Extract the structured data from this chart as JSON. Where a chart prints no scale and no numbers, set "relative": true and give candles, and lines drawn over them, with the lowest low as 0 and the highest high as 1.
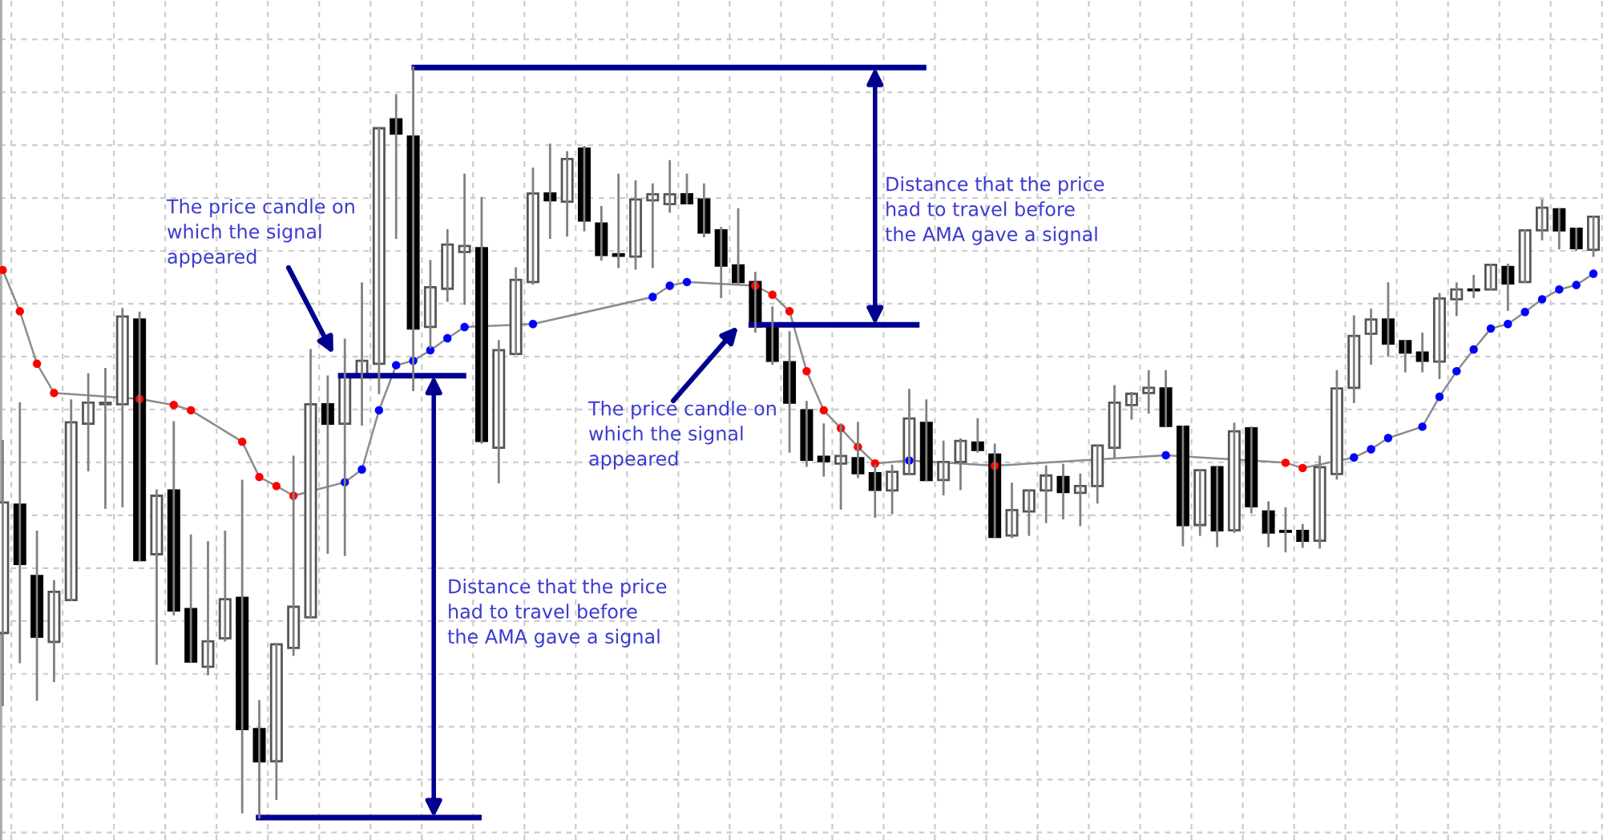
{
  "chart_data": {
    "type": "candlestick",
    "relative": true,
    "grid": true,
    "categories": [
      null,
      null,
      null,
      null,
      null,
      null,
      null,
      null,
      null,
      null,
      null,
      null,
      null,
      null,
      null,
      null,
      null,
      null,
      null,
      null,
      null,
      null,
      null,
      null,
      null,
      null,
      null,
      null,
      null,
      null,
      null,
      null,
      null,
      null,
      null,
      null,
      null,
      null,
      null,
      null,
      null,
      null,
      null,
      null,
      null,
      null,
      null,
      null,
      null,
      null,
      null,
      null,
      null,
      null,
      null,
      null,
      null,
      null,
      null,
      null,
      null,
      null,
      null,
      null,
      null,
      null,
      null,
      null,
      null,
      null,
      null,
      null,
      null,
      null,
      null,
      null,
      null,
      null,
      null,
      null,
      null,
      null,
      null,
      null,
      null,
      null,
      null,
      null,
      null,
      null,
      null,
      null,
      null,
      null
    ],
    "ohlc": [
      [
        0.246,
        0.502,
        0.15,
        0.42
      ],
      [
        0.417,
        0.552,
        0.207,
        0.338
      ],
      [
        0.322,
        0.381,
        0.157,
        0.241
      ],
      [
        0.234,
        0.315,
        0.182,
        0.301
      ],
      [
        0.29,
        0.556,
        0.29,
        0.527
      ],
      [
        0.525,
        0.591,
        0.463,
        0.553
      ],
      [
        0.551,
        0.598,
        0.413,
        0.553
      ],
      [
        0.551,
        0.678,
        0.415,
        0.668
      ],
      [
        0.664,
        0.673,
        0.343,
        0.343
      ],
      [
        0.351,
        0.436,
        0.205,
        0.429
      ],
      [
        0.436,
        0.527,
        0.271,
        0.276
      ],
      [
        0.278,
        0.376,
        0.208,
        0.208
      ],
      [
        0.201,
        0.367,
        0.191,
        0.235
      ],
      [
        0.239,
        0.381,
        0.236,
        0.291
      ],
      [
        0.293,
        0.449,
        0.007,
        0.118
      ],
      [
        0.118,
        0.155,
        0.0,
        0.075
      ],
      [
        0.075,
        0.231,
        0.025,
        0.231
      ],
      [
        0.226,
        0.481,
        0.217,
        0.281
      ],
      [
        0.267,
        0.623,
        0.267,
        0.551
      ],
      [
        0.551,
        0.588,
        0.353,
        0.525
      ],
      [
        0.525,
        0.637,
        0.35,
        0.588
      ],
      [
        0.588,
        0.712,
        0.524,
        0.609
      ],
      [
        0.605,
        0.919,
        0.566,
        0.919
      ],
      [
        0.931,
        0.963,
        0.773,
        0.912
      ],
      [
        0.908,
        1.0,
        0.57,
        0.652
      ],
      [
        0.654,
        0.742,
        0.627,
        0.707
      ],
      [
        0.705,
        0.783,
        0.689,
        0.764
      ],
      [
        0.754,
        0.857,
        0.685,
        0.762
      ],
      [
        0.759,
        0.826,
        0.5,
        0.502
      ],
      [
        0.493,
        0.635,
        0.447,
        0.623
      ],
      [
        0.618,
        0.732,
        0.618,
        0.717
      ],
      [
        0.714,
        0.865,
        0.712,
        0.832
      ],
      [
        0.832,
        0.897,
        0.773,
        0.823
      ],
      [
        0.821,
        0.887,
        0.776,
        0.878
      ],
      [
        0.892,
        0.894,
        0.783,
        0.796
      ],
      [
        0.792,
        0.814,
        0.744,
        0.75
      ],
      [
        0.751,
        0.857,
        0.734,
        0.749
      ],
      [
        0.748,
        0.848,
        0.732,
        0.824
      ],
      [
        0.823,
        0.844,
        0.734,
        0.831
      ],
      [
        0.818,
        0.875,
        0.808,
        0.831
      ],
      [
        0.831,
        0.857,
        0.819,
        0.819
      ],
      [
        0.824,
        0.844,
        0.775,
        0.78
      ],
      [
        0.783,
        0.786,
        0.694,
        0.736
      ],
      [
        0.736,
        0.811,
        0.712,
        0.714
      ],
      [
        0.714,
        0.726,
        0.648,
        0.655
      ],
      [
        0.655,
        0.68,
        0.605,
        0.609
      ],
      [
        0.607,
        0.647,
        0.488,
        0.553
      ],
      [
        0.543,
        0.554,
        0.469,
        0.477
      ],
      [
        0.481,
        0.524,
        0.456,
        0.475
      ],
      [
        0.472,
        0.524,
        0.412,
        0.482
      ],
      [
        0.479,
        0.526,
        0.454,
        0.459
      ],
      [
        0.459,
        0.469,
        0.401,
        0.437
      ],
      [
        0.436,
        0.469,
        0.406,
        0.461
      ],
      [
        0.458,
        0.57,
        0.458,
        0.532
      ],
      [
        0.526,
        0.556,
        0.45,
        0.45
      ],
      [
        0.45,
        0.501,
        0.431,
        0.474
      ],
      [
        0.474,
        0.504,
        0.438,
        0.502
      ],
      [
        0.5,
        0.531,
        0.488,
        0.49
      ],
      [
        0.484,
        0.497,
        0.374,
        0.374
      ],
      [
        0.376,
        0.445,
        0.374,
        0.41
      ],
      [
        0.408,
        0.436,
        0.377,
        0.436
      ],
      [
        0.436,
        0.468,
        0.394,
        0.456
      ],
      [
        0.454,
        0.47,
        0.399,
        0.434
      ],
      [
        0.433,
        0.457,
        0.39,
        0.442
      ],
      [
        0.442,
        0.496,
        0.42,
        0.496
      ],
      [
        0.493,
        0.575,
        0.481,
        0.553
      ],
      [
        0.55,
        0.566,
        0.532,
        0.565
      ],
      [
        0.566,
        0.595,
        0.54,
        0.573
      ],
      [
        0.572,
        0.595,
        0.522,
        0.522
      ],
      [
        0.521,
        0.521,
        0.363,
        0.39
      ],
      [
        0.39,
        0.463,
        0.377,
        0.463
      ],
      [
        0.467,
        0.467,
        0.362,
        0.383
      ],
      [
        0.383,
        0.525,
        0.381,
        0.515
      ],
      [
        0.519,
        0.52,
        0.407,
        0.415
      ],
      [
        0.408,
        0.42,
        0.362,
        0.38
      ],
      [
        0.382,
        0.412,
        0.355,
        0.381
      ],
      [
        0.382,
        0.39,
        0.361,
        0.369
      ],
      [
        0.369,
        0.481,
        0.36,
        0.467
      ],
      [
        0.458,
        0.595,
        0.452,
        0.572
      ],
      [
        0.573,
        0.668,
        0.554,
        0.642
      ],
      [
        0.645,
        0.677,
        0.605,
        0.664
      ],
      [
        0.664,
        0.712,
        0.616,
        0.632
      ],
      [
        0.635,
        0.635,
        0.595,
        0.62
      ],
      [
        0.62,
        0.645,
        0.595,
        0.609
      ],
      [
        0.608,
        0.698,
        0.586,
        0.692
      ],
      [
        0.691,
        0.712,
        0.67,
        0.704
      ],
      [
        0.704,
        0.722,
        0.694,
        0.703
      ],
      [
        0.704,
        0.737,
        0.704,
        0.737
      ],
      [
        0.734,
        0.737,
        0.677,
        0.712
      ],
      [
        0.714,
        0.783,
        0.714,
        0.783
      ],
      [
        0.783,
        0.823,
        0.771,
        0.813
      ],
      [
        0.811,
        0.811,
        0.759,
        0.783
      ],
      [
        0.785,
        0.785,
        0.757,
        0.759
      ],
      [
        0.757,
        0.801,
        0.749,
        0.801
      ]
    ],
    "series": [
      {
        "type": "line",
        "color": "#8c8c8c",
        "values": [
          0.73,
          0.675,
          0.605,
          0.566,
          null,
          null,
          null,
          null,
          0.558,
          null,
          0.55,
          0.543,
          null,
          null,
          0.501,
          0.454,
          0.442,
          0.429,
          null,
          null,
          0.447,
          0.464,
          0.543,
          0.603,
          0.609,
          0.623,
          0.639,
          0.654,
          null,
          null,
          null,
          0.658,
          null,
          null,
          null,
          null,
          null,
          null,
          0.694,
          0.709,
          0.714,
          null,
          null,
          null,
          0.709,
          0.697,
          0.675,
          0.595,
          0.543,
          0.519,
          0.494,
          0.472,
          null,
          0.476,
          null,
          null,
          null,
          null,
          0.469,
          null,
          null,
          null,
          null,
          null,
          null,
          null,
          null,
          null,
          0.483,
          null,
          null,
          null,
          null,
          null,
          null,
          0.473,
          0.466,
          null,
          null,
          0.48,
          0.491,
          0.506,
          null,
          0.521,
          0.561,
          0.595,
          0.624,
          0.652,
          0.658,
          0.674,
          0.691,
          0.704,
          0.71,
          0.725
        ],
        "line_style": "solid"
      },
      {
        "type": "scatter",
        "color": "#ff0000",
        "marker": "circle",
        "values": [
          0.73,
          0.675,
          0.605,
          0.566,
          null,
          null,
          null,
          null,
          0.558,
          null,
          0.55,
          0.543,
          null,
          null,
          0.501,
          0.454,
          0.442,
          0.429,
          null,
          null,
          null,
          null,
          null,
          null,
          null,
          null,
          null,
          null,
          null,
          null,
          null,
          null,
          null,
          null,
          null,
          null,
          null,
          null,
          null,
          null,
          null,
          null,
          null,
          null,
          0.709,
          0.697,
          0.675,
          0.595,
          0.543,
          0.519,
          0.494,
          0.472,
          null,
          null,
          null,
          null,
          null,
          null,
          0.469,
          null,
          null,
          null,
          null,
          null,
          null,
          null,
          null,
          null,
          null,
          null,
          null,
          null,
          null,
          null,
          null,
          0.473,
          0.466,
          null,
          null,
          null,
          null,
          null,
          null,
          null,
          null,
          null,
          null,
          null,
          null,
          null,
          null,
          null,
          null,
          null
        ]
      },
      {
        "type": "scatter",
        "color": "#0000ff",
        "marker": "circle",
        "values": [
          null,
          null,
          null,
          null,
          null,
          null,
          null,
          null,
          null,
          null,
          null,
          null,
          null,
          null,
          null,
          null,
          null,
          null,
          null,
          null,
          0.447,
          0.464,
          0.543,
          0.603,
          0.609,
          0.623,
          0.639,
          0.654,
          null,
          null,
          null,
          0.658,
          null,
          null,
          null,
          null,
          null,
          null,
          0.694,
          0.709,
          0.714,
          null,
          null,
          null,
          null,
          null,
          null,
          null,
          null,
          null,
          null,
          null,
          null,
          0.476,
          null,
          null,
          null,
          null,
          null,
          null,
          null,
          null,
          null,
          null,
          null,
          null,
          null,
          null,
          0.483,
          null,
          null,
          null,
          null,
          null,
          null,
          null,
          null,
          null,
          null,
          0.48,
          0.491,
          0.506,
          null,
          0.521,
          0.561,
          0.595,
          0.624,
          0.652,
          0.658,
          0.674,
          0.691,
          0.704,
          0.71,
          0.725
        ]
      }
    ],
    "ref_lines": [
      {
        "axis": "y",
        "value": 1.0,
        "color": "#000090"
      },
      {
        "axis": "y",
        "value": 0.657,
        "color": "#000090"
      },
      {
        "axis": "y",
        "value": 0.589,
        "color": "#000090"
      },
      {
        "axis": "y",
        "value": 0.0,
        "color": "#000090"
      }
    ],
    "annotations": [
      "The price candle on\nwhich the signal\nappeared",
      "Distance that the price\nhad to travel before\nthe AMA gave a signal",
      "The price candle on\nwhich the signal\nappeared",
      "Distance that the price\nhad to travel before\nthe AMA gave a signal"
    ]
  }
}
